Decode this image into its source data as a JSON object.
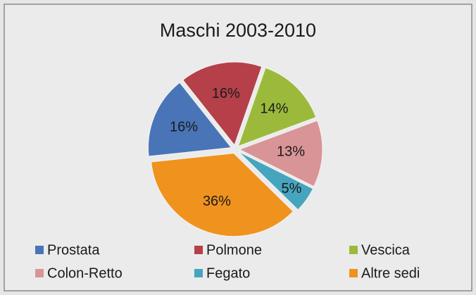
{
  "chart_data": {
    "type": "pie",
    "title": "Maschi 2003-2010",
    "categories": [
      "Prostata",
      "Polmone",
      "Vescica",
      "Colon-Retto",
      "Fegato",
      "Altre sedi"
    ],
    "values": [
      16,
      16,
      14,
      13,
      5,
      36
    ],
    "value_labels": [
      "16%",
      "16%",
      "14%",
      "13%",
      "5%",
      "36%"
    ],
    "colors": [
      "#4a74b8",
      "#b5404a",
      "#9bba3c",
      "#d99497",
      "#46a5be",
      "#f0921e"
    ],
    "legend": "bottom"
  }
}
